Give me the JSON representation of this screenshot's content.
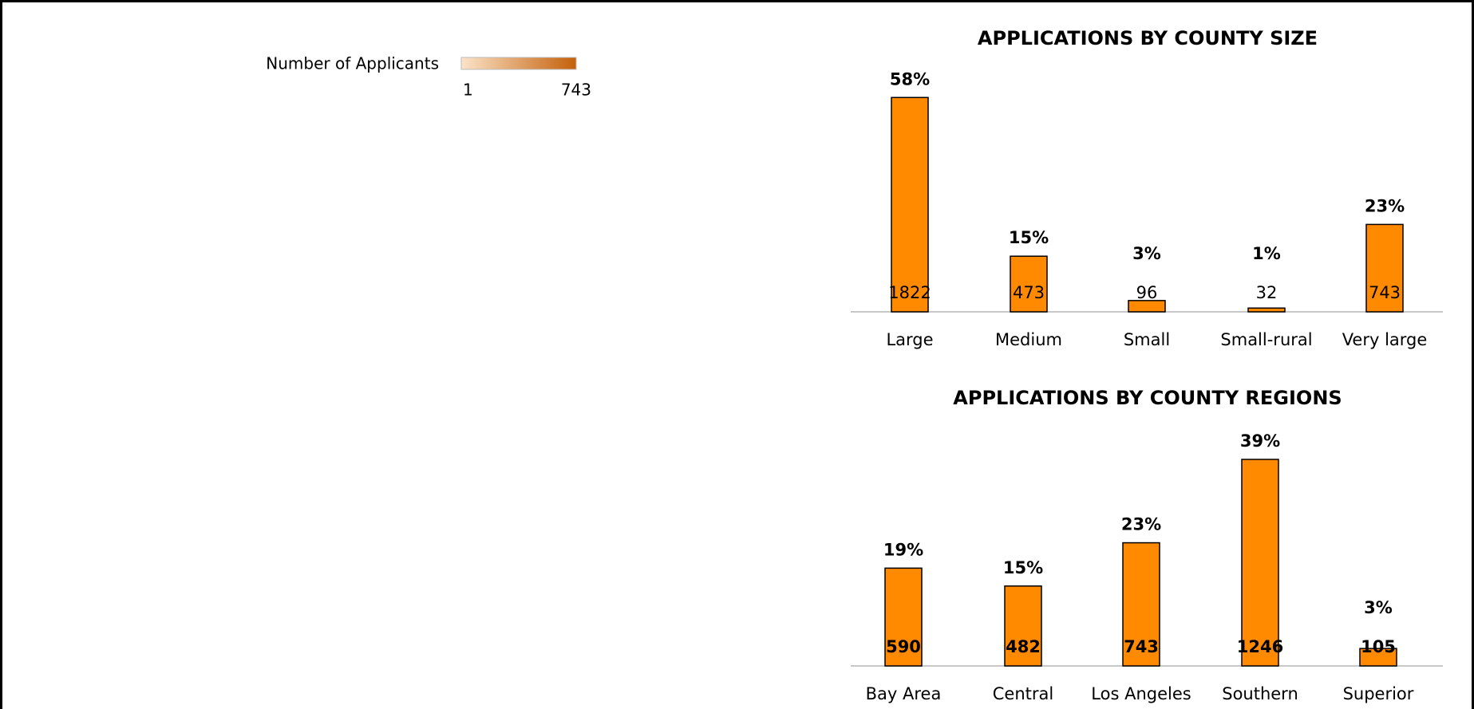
{
  "legend": {
    "title": "Number of Applicants",
    "min_label": "1",
    "max_label": "743"
  },
  "chart_data": [
    {
      "type": "bar",
      "title": "APPLICATIONS BY COUNTY SIZE",
      "categories": [
        "Large",
        "Medium",
        "Small",
        "Small-rural",
        "Very large"
      ],
      "values": [
        1822,
        473,
        96,
        32,
        743
      ],
      "share_labels": [
        "58%",
        "15%",
        "3%",
        "1%",
        "23%"
      ],
      "color": "#ff8a00",
      "ylim": [
        0,
        2000
      ],
      "value_label_bold": false
    },
    {
      "type": "bar",
      "title": "APPLICATIONS BY COUNTY REGIONS",
      "categories": [
        "Bay Area",
        "Central",
        "Los Angeles",
        "Southern",
        "Superior"
      ],
      "values": [
        590,
        482,
        743,
        1246,
        105
      ],
      "share_labels": [
        "19%",
        "15%",
        "23%",
        "39%",
        "3%"
      ],
      "color": "#ff8a00",
      "ylim": [
        0,
        1400
      ],
      "value_label_bold": true
    }
  ]
}
